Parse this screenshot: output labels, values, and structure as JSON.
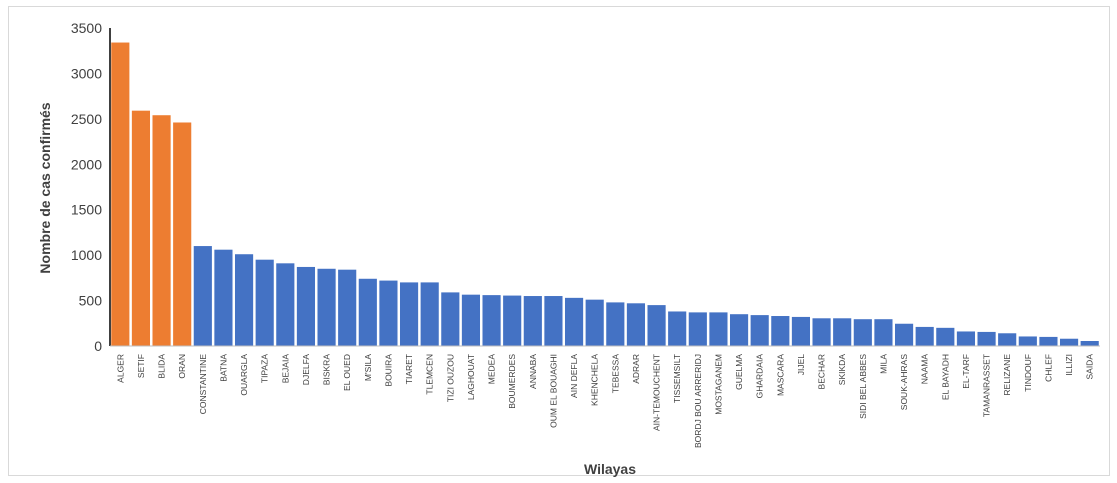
{
  "chart_data": {
    "type": "bar",
    "xlabel": "Wilayas",
    "ylabel": "Nombre de cas confirmés",
    "ylim": [
      0,
      3500
    ],
    "yticks": [
      0,
      500,
      1000,
      1500,
      2000,
      2500,
      3000,
      3500
    ],
    "grid": false,
    "colors": {
      "highlight": "#ED7D31",
      "default": "#4472C4",
      "axis": "#000000"
    },
    "categories": [
      "ALGER",
      "SETIF",
      "BLIDA",
      "ORAN",
      "CONSTANTINE",
      "BATNA",
      "OUARGLA",
      "TIPAZA",
      "BEJAIA",
      "DJELFA",
      "BISKRA",
      "EL OUED",
      "M'SILA",
      "BOUIRA",
      "TIARET",
      "TLEMCEN",
      "TIZI OUZOU",
      "LAGHOUAT",
      "MEDEA",
      "BOUMERDES",
      "ANNABA",
      "OUM EL BOUAGHI",
      "AIN DEFLA",
      "KHENCHELA",
      "TEBESSA",
      "ADRAR",
      "AIN-TEMOUCHENT",
      "TISSEMSILT",
      "BORDJ BOU ARRERIDJ",
      "MOSTAGANEM",
      "GUELMA",
      "GHARDAIA",
      "MASCARA",
      "JIJEL",
      "BECHAR",
      "SKIKDA",
      "SIDI BEL ABBES",
      "MILA",
      "SOUK-AHRAS",
      "NAAMA",
      "EL BAYADH",
      "EL-TARF",
      "TAMANRASSET",
      "RELIZANE",
      "TINDOUF",
      "CHLEF",
      "ILLIZI",
      "SAIDA"
    ],
    "values": [
      3340,
      2590,
      2540,
      2460,
      1100,
      1060,
      1010,
      950,
      910,
      870,
      850,
      840,
      740,
      720,
      700,
      700,
      590,
      565,
      560,
      555,
      550,
      550,
      530,
      510,
      480,
      470,
      450,
      380,
      370,
      370,
      350,
      340,
      330,
      320,
      305,
      305,
      295,
      295,
      245,
      210,
      200,
      160,
      155,
      140,
      105,
      100,
      80,
      55
    ],
    "highlight_count": 4
  }
}
